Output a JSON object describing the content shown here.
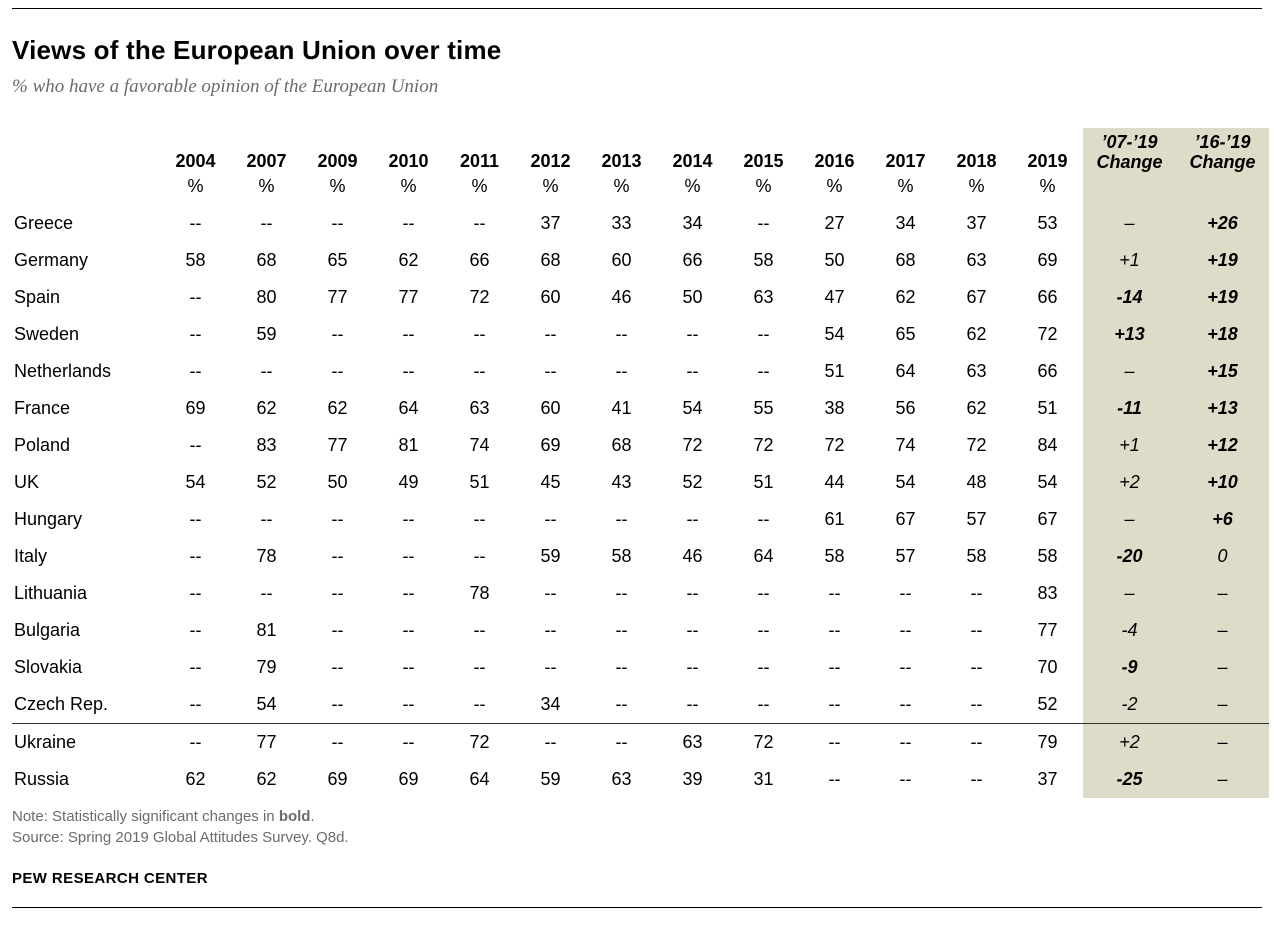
{
  "header": {
    "title": "Views of the European Union over time",
    "subtitle": "% who have a favorable opinion of the European Union"
  },
  "chart_data": {
    "type": "table",
    "title": "Views of the European Union over time",
    "subtitle": "% who have a favorable opinion of the European Union",
    "unit": "%",
    "year_columns": [
      "2004",
      "2007",
      "2009",
      "2010",
      "2011",
      "2012",
      "2013",
      "2014",
      "2015",
      "2016",
      "2017",
      "2018",
      "2019"
    ],
    "change_columns": [
      {
        "line1": "’07-’19",
        "line2": "Change"
      },
      {
        "line1": "’16-’19",
        "line2": "Change"
      }
    ],
    "rows": [
      {
        "country": "Greece",
        "separator_above": false,
        "values": [
          "--",
          "--",
          "--",
          "--",
          "--",
          "37",
          "33",
          "34",
          "--",
          "27",
          "34",
          "37",
          "53"
        ],
        "changes": [
          {
            "text": "–",
            "bold": false
          },
          {
            "text": "+26",
            "bold": true
          }
        ]
      },
      {
        "country": "Germany",
        "separator_above": false,
        "values": [
          "58",
          "68",
          "65",
          "62",
          "66",
          "68",
          "60",
          "66",
          "58",
          "50",
          "68",
          "63",
          "69"
        ],
        "changes": [
          {
            "text": "+1",
            "bold": false
          },
          {
            "text": "+19",
            "bold": true
          }
        ]
      },
      {
        "country": "Spain",
        "separator_above": false,
        "values": [
          "--",
          "80",
          "77",
          "77",
          "72",
          "60",
          "46",
          "50",
          "63",
          "47",
          "62",
          "67",
          "66"
        ],
        "changes": [
          {
            "text": "-14",
            "bold": true
          },
          {
            "text": "+19",
            "bold": true
          }
        ]
      },
      {
        "country": "Sweden",
        "separator_above": false,
        "values": [
          "--",
          "59",
          "--",
          "--",
          "--",
          "--",
          "--",
          "--",
          "--",
          "54",
          "65",
          "62",
          "72"
        ],
        "changes": [
          {
            "text": "+13",
            "bold": true
          },
          {
            "text": "+18",
            "bold": true
          }
        ]
      },
      {
        "country": "Netherlands",
        "separator_above": false,
        "values": [
          "--",
          "--",
          "--",
          "--",
          "--",
          "--",
          "--",
          "--",
          "--",
          "51",
          "64",
          "63",
          "66"
        ],
        "changes": [
          {
            "text": "–",
            "bold": false
          },
          {
            "text": "+15",
            "bold": true
          }
        ]
      },
      {
        "country": "France",
        "separator_above": false,
        "values": [
          "69",
          "62",
          "62",
          "64",
          "63",
          "60",
          "41",
          "54",
          "55",
          "38",
          "56",
          "62",
          "51"
        ],
        "changes": [
          {
            "text": "-11",
            "bold": true
          },
          {
            "text": "+13",
            "bold": true
          }
        ]
      },
      {
        "country": "Poland",
        "separator_above": false,
        "values": [
          "--",
          "83",
          "77",
          "81",
          "74",
          "69",
          "68",
          "72",
          "72",
          "72",
          "74",
          "72",
          "84"
        ],
        "changes": [
          {
            "text": "+1",
            "bold": false
          },
          {
            "text": "+12",
            "bold": true
          }
        ]
      },
      {
        "country": "UK",
        "separator_above": false,
        "values": [
          "54",
          "52",
          "50",
          "49",
          "51",
          "45",
          "43",
          "52",
          "51",
          "44",
          "54",
          "48",
          "54"
        ],
        "changes": [
          {
            "text": "+2",
            "bold": false
          },
          {
            "text": "+10",
            "bold": true
          }
        ]
      },
      {
        "country": "Hungary",
        "separator_above": false,
        "values": [
          "--",
          "--",
          "--",
          "--",
          "--",
          "--",
          "--",
          "--",
          "--",
          "61",
          "67",
          "57",
          "67"
        ],
        "changes": [
          {
            "text": "–",
            "bold": false
          },
          {
            "text": "+6",
            "bold": true
          }
        ]
      },
      {
        "country": "Italy",
        "separator_above": false,
        "values": [
          "--",
          "78",
          "--",
          "--",
          "--",
          "59",
          "58",
          "46",
          "64",
          "58",
          "57",
          "58",
          "58"
        ],
        "changes": [
          {
            "text": "-20",
            "bold": true
          },
          {
            "text": "0",
            "bold": false
          }
        ]
      },
      {
        "country": "Lithuania",
        "separator_above": false,
        "values": [
          "--",
          "--",
          "--",
          "--",
          "78",
          "--",
          "--",
          "--",
          "--",
          "--",
          "--",
          "--",
          "83"
        ],
        "changes": [
          {
            "text": "–",
            "bold": false
          },
          {
            "text": "–",
            "bold": false
          }
        ]
      },
      {
        "country": "Bulgaria",
        "separator_above": false,
        "values": [
          "--",
          "81",
          "--",
          "--",
          "--",
          "--",
          "--",
          "--",
          "--",
          "--",
          "--",
          "--",
          "77"
        ],
        "changes": [
          {
            "text": "-4",
            "bold": false
          },
          {
            "text": "–",
            "bold": false
          }
        ]
      },
      {
        "country": "Slovakia",
        "separator_above": false,
        "values": [
          "--",
          "79",
          "--",
          "--",
          "--",
          "--",
          "--",
          "--",
          "--",
          "--",
          "--",
          "--",
          "70"
        ],
        "changes": [
          {
            "text": "-9",
            "bold": true
          },
          {
            "text": "–",
            "bold": false
          }
        ]
      },
      {
        "country": "Czech Rep.",
        "separator_above": false,
        "values": [
          "--",
          "54",
          "--",
          "--",
          "--",
          "34",
          "--",
          "--",
          "--",
          "--",
          "--",
          "--",
          "52"
        ],
        "changes": [
          {
            "text": "-2",
            "bold": false
          },
          {
            "text": "–",
            "bold": false
          }
        ]
      },
      {
        "country": "Ukraine",
        "separator_above": true,
        "values": [
          "--",
          "77",
          "--",
          "--",
          "72",
          "--",
          "--",
          "63",
          "72",
          "--",
          "--",
          "--",
          "79"
        ],
        "changes": [
          {
            "text": "+2",
            "bold": false
          },
          {
            "text": "–",
            "bold": false
          }
        ]
      },
      {
        "country": "Russia",
        "separator_above": false,
        "values": [
          "62",
          "62",
          "69",
          "69",
          "64",
          "59",
          "63",
          "39",
          "31",
          "--",
          "--",
          "--",
          "37"
        ],
        "changes": [
          {
            "text": "-25",
            "bold": true
          },
          {
            "text": "–",
            "bold": false
          }
        ]
      }
    ]
  },
  "footer": {
    "note_prefix": "Note: Statistically significant changes in ",
    "note_bold_word": "bold",
    "note_suffix": ".",
    "source": "Source: Spring 2019 Global Attitudes Survey. Q8d.",
    "brand": "PEW RESEARCH CENTER"
  },
  "colors": {
    "change_band_bg": "#dedbc8",
    "muted_text": "#6b6b6b",
    "text": "#000000"
  }
}
